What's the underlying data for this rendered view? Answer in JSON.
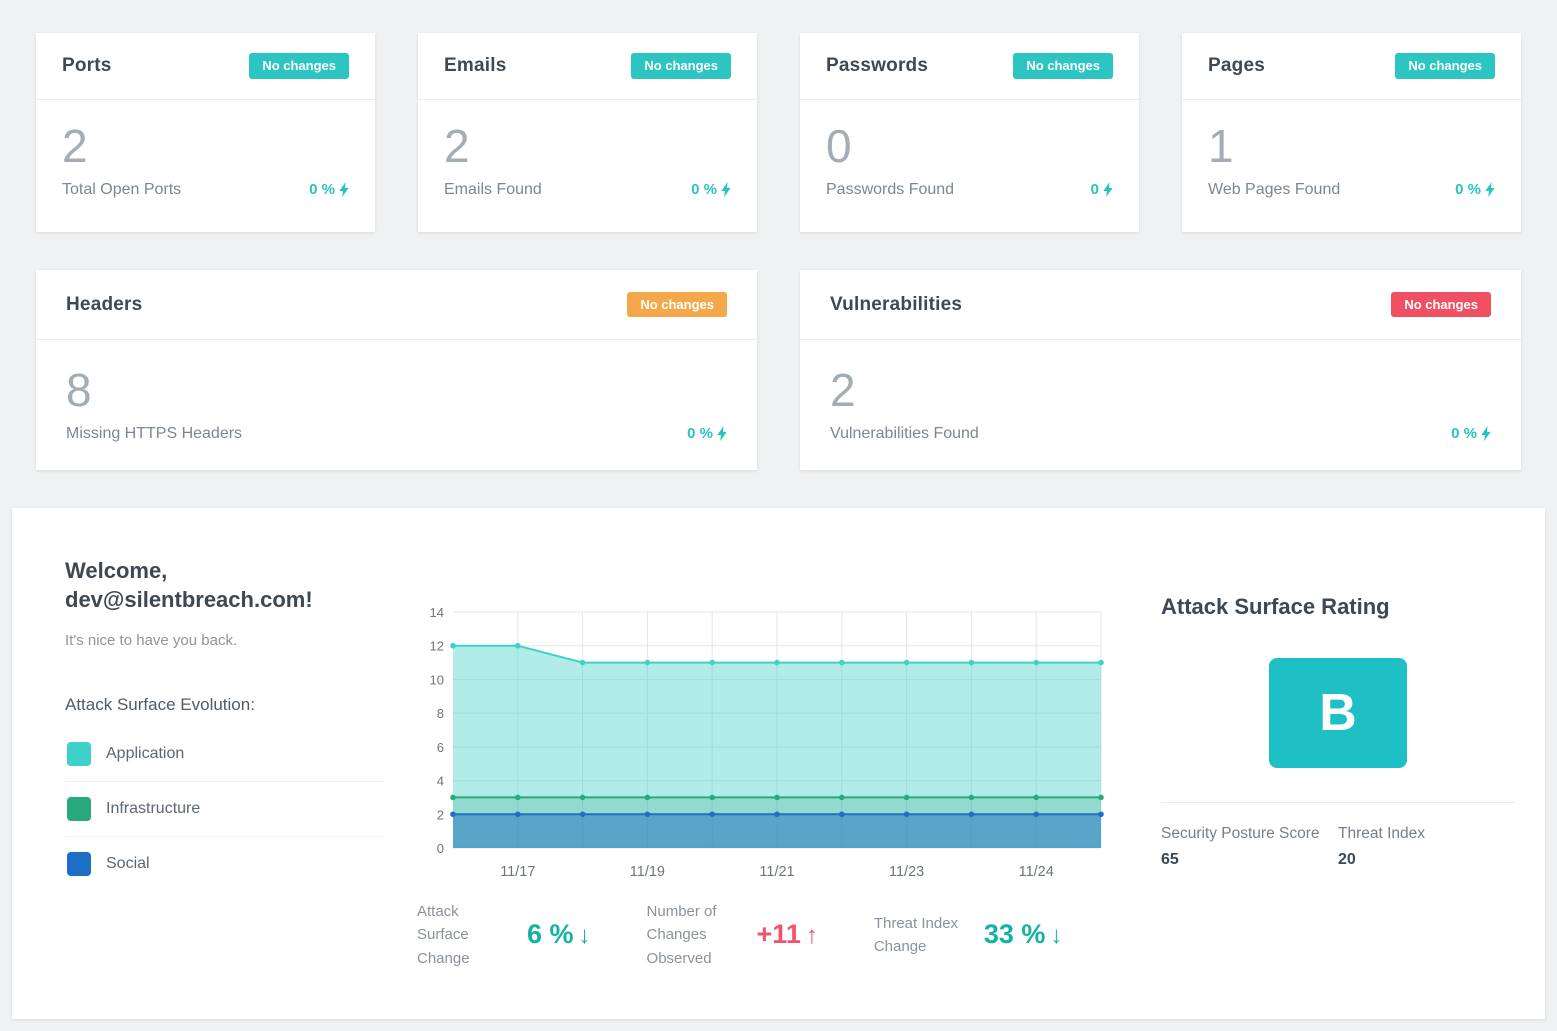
{
  "accent": {
    "teal": "#26c6c0",
    "stat_teal": "#13b3a3",
    "stat_red": "#f0536a"
  },
  "cards": [
    {
      "title": "Ports",
      "badge": "No changes",
      "badge_color": "#2dc5c2",
      "value": "2",
      "label": "Total Open Ports",
      "change": "0 %"
    },
    {
      "title": "Emails",
      "badge": "No changes",
      "badge_color": "#2dc5c2",
      "value": "2",
      "label": "Emails Found",
      "change": "0 %"
    },
    {
      "title": "Passwords",
      "badge": "No changes",
      "badge_color": "#2dc5c2",
      "value": "0",
      "label": "Passwords Found",
      "change": "0"
    },
    {
      "title": "Pages",
      "badge": "No changes",
      "badge_color": "#2dc5c2",
      "value": "1",
      "label": "Web Pages Found",
      "change": "0 %"
    }
  ],
  "wide_cards": [
    {
      "title": "Headers",
      "badge": "No changes",
      "badge_color": "#f5a84b",
      "value": "8",
      "label": "Missing HTTPS Headers",
      "change": "0 %"
    },
    {
      "title": "Vulnerabilities",
      "badge": "No changes",
      "badge_color": "#ef5162",
      "value": "2",
      "label": "Vulnerabilities Found",
      "change": "0 %"
    }
  ],
  "welcome": {
    "line1": "Welcome,",
    "line2": "dev@silentbreach.com!",
    "subtitle": "It's nice to have you back.",
    "evolution_label": "Attack Surface Evolution:",
    "legend": [
      {
        "label": "Application",
        "color": "#3ed1ca"
      },
      {
        "label": "Infrastructure",
        "color": "#2aa97c"
      },
      {
        "label": "Social",
        "color": "#1d6ec6"
      }
    ]
  },
  "chart_data": {
    "type": "area",
    "title": "Attack Surface Evolution",
    "x_labels": [
      "",
      "11/17",
      "",
      "11/19",
      "",
      "11/21",
      "",
      "11/23",
      "",
      "11/24",
      ""
    ],
    "series": [
      {
        "name": "Application",
        "color": "#40d1ca",
        "fill": "rgba(62,208,201,0.40)",
        "values": [
          12,
          12,
          11,
          11,
          11,
          11,
          11,
          11,
          11,
          11,
          11
        ]
      },
      {
        "name": "Infrastructure",
        "color": "#2aa97c",
        "fill": "rgba(42,169,124,0.25)",
        "values": [
          3,
          3,
          3,
          3,
          3,
          3,
          3,
          3,
          3,
          3,
          3
        ]
      },
      {
        "name": "Social",
        "color": "#1f6fc5",
        "fill": "rgba(31,111,197,0.50)",
        "values": [
          2,
          2,
          2,
          2,
          2,
          2,
          2,
          2,
          2,
          2,
          2
        ]
      }
    ],
    "ylim": [
      0,
      14
    ],
    "y_ticks": [
      0,
      2,
      4,
      6,
      8,
      10,
      12,
      14
    ],
    "grid": true,
    "legend_position": "left"
  },
  "stats": [
    {
      "label": "Attack Surface Change",
      "value": "6 %",
      "arrow": "↓",
      "color": "#13b3a3"
    },
    {
      "label": "Number of Changes Observed",
      "value": "+11",
      "arrow": "↑",
      "color": "#f0536a"
    },
    {
      "label": "Threat Index Change",
      "value": "33 %",
      "arrow": "↓",
      "color": "#13b3a3"
    }
  ],
  "rating": {
    "title": "Attack Surface Rating",
    "grade": "B",
    "badge_color": "#1ec0c6",
    "score_label": "Security Posture Score",
    "score_value": "65",
    "threat_label": "Threat Index",
    "threat_value": "20"
  }
}
